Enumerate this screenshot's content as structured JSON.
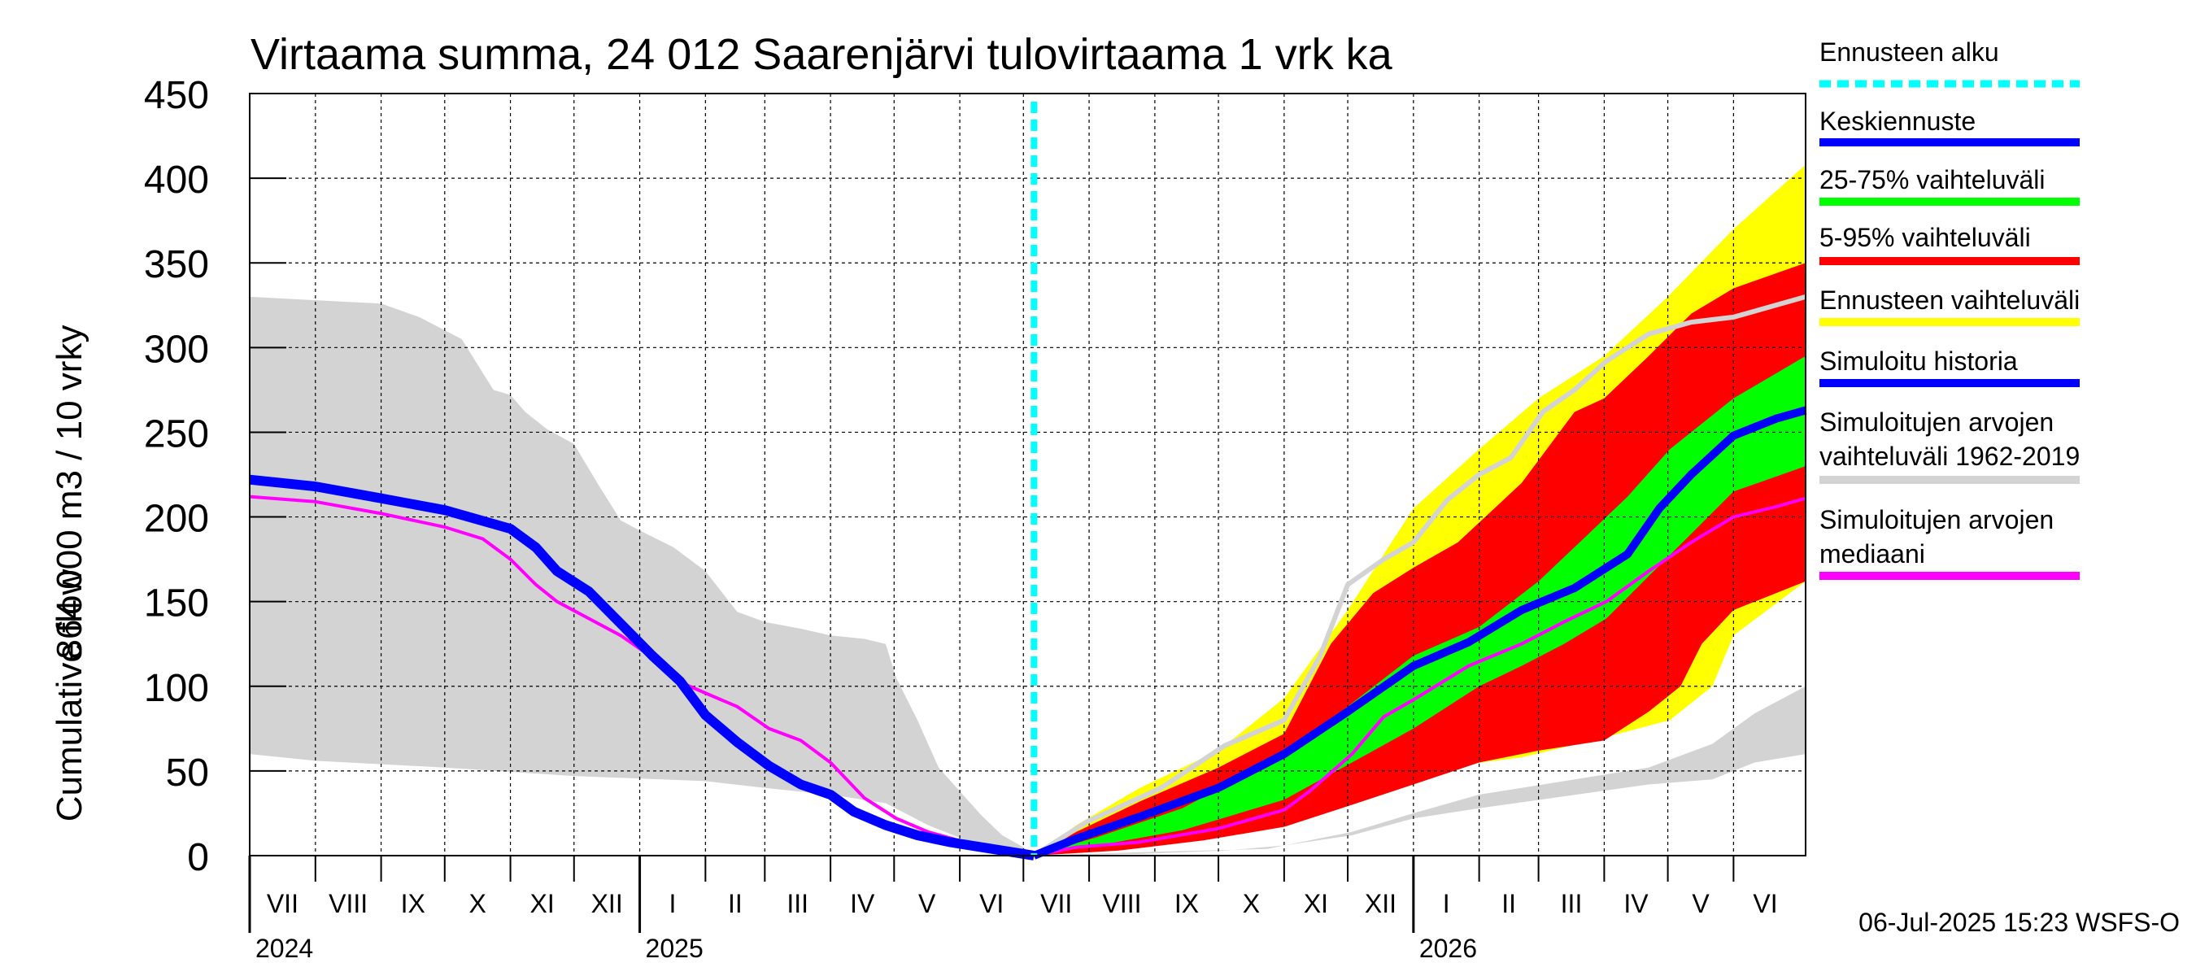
{
  "chart_data": {
    "type": "area",
    "title": "Virtaama summa, 24 012 Saarenjärvi tulovirtaama 1 vrk ka",
    "ylabel_line1": "864 000 m3 / 10 vrky",
    "ylabel_line2": "Cumulative flow",
    "ylim": [
      0,
      450
    ],
    "yticks": [
      0,
      50,
      100,
      150,
      200,
      250,
      300,
      350,
      400,
      450
    ],
    "x_range_days": [
      0,
      734
    ],
    "months": [
      {
        "label": "VII",
        "start": 0,
        "end": 31
      },
      {
        "label": "VIII",
        "start": 31,
        "end": 62
      },
      {
        "label": "IX",
        "start": 62,
        "end": 92
      },
      {
        "label": "X",
        "start": 92,
        "end": 123
      },
      {
        "label": "XI",
        "start": 123,
        "end": 153
      },
      {
        "label": "XII",
        "start": 153,
        "end": 184
      },
      {
        "label": "I",
        "start": 184,
        "end": 215
      },
      {
        "label": "II",
        "start": 215,
        "end": 243
      },
      {
        "label": "III",
        "start": 243,
        "end": 274
      },
      {
        "label": "IV",
        "start": 274,
        "end": 304
      },
      {
        "label": "V",
        "start": 304,
        "end": 335
      },
      {
        "label": "VI",
        "start": 335,
        "end": 365
      },
      {
        "label": "VII",
        "start": 365,
        "end": 396
      },
      {
        "label": "VIII",
        "start": 396,
        "end": 427
      },
      {
        "label": "IX",
        "start": 427,
        "end": 457
      },
      {
        "label": "X",
        "start": 457,
        "end": 488
      },
      {
        "label": "XI",
        "start": 488,
        "end": 518
      },
      {
        "label": "XII",
        "start": 518,
        "end": 549
      },
      {
        "label": "I",
        "start": 549,
        "end": 580
      },
      {
        "label": "II",
        "start": 580,
        "end": 608
      },
      {
        "label": "III",
        "start": 608,
        "end": 639
      },
      {
        "label": "IV",
        "start": 639,
        "end": 669
      },
      {
        "label": "V",
        "start": 669,
        "end": 700
      },
      {
        "label": "VI",
        "start": 700,
        "end": 730
      }
    ],
    "years": [
      {
        "label": "2024",
        "day": 0
      },
      {
        "label": "2025",
        "day": 184
      },
      {
        "label": "2026",
        "day": 549
      }
    ],
    "forecast_start_day": 370,
    "series": {
      "hist_range_upper": [
        [
          0,
          330
        ],
        [
          30,
          328
        ],
        [
          62,
          326
        ],
        [
          80,
          318
        ],
        [
          100,
          305
        ],
        [
          115,
          275
        ],
        [
          123,
          272
        ],
        [
          130,
          262
        ],
        [
          140,
          252
        ],
        [
          153,
          243
        ],
        [
          165,
          218
        ],
        [
          175,
          198
        ],
        [
          184,
          192
        ],
        [
          200,
          182
        ],
        [
          215,
          168
        ],
        [
          230,
          144
        ],
        [
          243,
          138
        ],
        [
          260,
          134
        ],
        [
          274,
          130
        ],
        [
          290,
          128
        ],
        [
          300,
          125
        ],
        [
          305,
          105
        ],
        [
          315,
          80
        ],
        [
          325,
          52
        ],
        [
          335,
          38
        ],
        [
          345,
          24
        ],
        [
          355,
          12
        ],
        [
          365,
          5
        ],
        [
          370,
          0
        ]
      ],
      "hist_range_lower": [
        [
          0,
          60
        ],
        [
          31,
          56
        ],
        [
          92,
          52
        ],
        [
          153,
          47
        ],
        [
          215,
          44
        ],
        [
          243,
          40
        ],
        [
          274,
          36
        ],
        [
          300,
          31
        ],
        [
          320,
          18
        ],
        [
          340,
          8
        ],
        [
          360,
          3
        ],
        [
          370,
          0
        ]
      ],
      "sim_history": [
        [
          0,
          222
        ],
        [
          31,
          218
        ],
        [
          62,
          211
        ],
        [
          92,
          204
        ],
        [
          123,
          193
        ],
        [
          135,
          182
        ],
        [
          145,
          168
        ],
        [
          160,
          156
        ],
        [
          175,
          137
        ],
        [
          190,
          118
        ],
        [
          203,
          103
        ],
        [
          215,
          83
        ],
        [
          230,
          67
        ],
        [
          245,
          53
        ],
        [
          260,
          42
        ],
        [
          274,
          36
        ],
        [
          285,
          26
        ],
        [
          300,
          18
        ],
        [
          315,
          12
        ],
        [
          330,
          8
        ],
        [
          345,
          5
        ],
        [
          360,
          2
        ],
        [
          370,
          0
        ]
      ],
      "hist_median": [
        [
          0,
          212
        ],
        [
          31,
          209
        ],
        [
          62,
          202
        ],
        [
          92,
          194
        ],
        [
          110,
          187
        ],
        [
          123,
          175
        ],
        [
          135,
          160
        ],
        [
          145,
          150
        ],
        [
          160,
          140
        ],
        [
          175,
          130
        ],
        [
          190,
          117
        ],
        [
          200,
          104
        ],
        [
          215,
          96
        ],
        [
          230,
          88
        ],
        [
          245,
          75
        ],
        [
          260,
          68
        ],
        [
          274,
          55
        ],
        [
          290,
          34
        ],
        [
          305,
          22
        ],
        [
          320,
          14
        ],
        [
          340,
          7
        ],
        [
          360,
          2
        ],
        [
          370,
          0
        ]
      ],
      "ens_range_upper": [
        [
          370,
          0
        ],
        [
          390,
          18
        ],
        [
          420,
          40
        ],
        [
          457,
          62
        ],
        [
          488,
          93
        ],
        [
          518,
          145
        ],
        [
          549,
          205
        ],
        [
          580,
          240
        ],
        [
          608,
          270
        ],
        [
          639,
          295
        ],
        [
          669,
          330
        ],
        [
          700,
          370
        ],
        [
          734,
          408
        ]
      ],
      "ens_range_lower": [
        [
          370,
          0
        ],
        [
          400,
          4
        ],
        [
          440,
          11
        ],
        [
          488,
          22
        ],
        [
          520,
          35
        ],
        [
          549,
          50
        ],
        [
          600,
          58
        ],
        [
          640,
          70
        ],
        [
          670,
          80
        ],
        [
          690,
          100
        ],
        [
          700,
          130
        ],
        [
          734,
          162
        ]
      ],
      "ens_5_95_upper": [
        [
          370,
          0
        ],
        [
          390,
          14
        ],
        [
          420,
          32
        ],
        [
          457,
          52
        ],
        [
          488,
          72
        ],
        [
          510,
          125
        ],
        [
          530,
          155
        ],
        [
          549,
          170
        ],
        [
          570,
          185
        ],
        [
          600,
          220
        ],
        [
          625,
          262
        ],
        [
          639,
          270
        ],
        [
          660,
          295
        ],
        [
          680,
          320
        ],
        [
          700,
          335
        ],
        [
          734,
          350
        ]
      ],
      "ens_5_95_lower": [
        [
          370,
          0
        ],
        [
          410,
          3
        ],
        [
          450,
          9
        ],
        [
          488,
          17
        ],
        [
          520,
          30
        ],
        [
          549,
          42
        ],
        [
          580,
          55
        ],
        [
          608,
          62
        ],
        [
          639,
          68
        ],
        [
          660,
          85
        ],
        [
          675,
          100
        ],
        [
          685,
          125
        ],
        [
          700,
          145
        ],
        [
          734,
          162
        ]
      ],
      "ens_25_75_upper": [
        [
          370,
          0
        ],
        [
          400,
          11
        ],
        [
          440,
          28
        ],
        [
          488,
          60
        ],
        [
          520,
          90
        ],
        [
          549,
          118
        ],
        [
          580,
          135
        ],
        [
          608,
          162
        ],
        [
          630,
          188
        ],
        [
          650,
          212
        ],
        [
          670,
          240
        ],
        [
          700,
          270
        ],
        [
          734,
          295
        ]
      ],
      "ens_25_75_lower": [
        [
          370,
          0
        ],
        [
          400,
          6
        ],
        [
          440,
          15
        ],
        [
          488,
          33
        ],
        [
          520,
          55
        ],
        [
          549,
          75
        ],
        [
          580,
          100
        ],
        [
          600,
          112
        ],
        [
          620,
          125
        ],
        [
          640,
          140
        ],
        [
          660,
          165
        ],
        [
          680,
          190
        ],
        [
          700,
          215
        ],
        [
          734,
          230
        ]
      ],
      "mean_forecast": [
        [
          370,
          0
        ],
        [
          390,
          10
        ],
        [
          420,
          23
        ],
        [
          457,
          40
        ],
        [
          488,
          60
        ],
        [
          518,
          85
        ],
        [
          549,
          112
        ],
        [
          575,
          126
        ],
        [
          600,
          145
        ],
        [
          625,
          158
        ],
        [
          650,
          178
        ],
        [
          665,
          205
        ],
        [
          680,
          225
        ],
        [
          700,
          248
        ],
        [
          720,
          258
        ],
        [
          734,
          263
        ]
      ],
      "median_forecast": [
        [
          370,
          0
        ],
        [
          390,
          5
        ],
        [
          420,
          8
        ],
        [
          457,
          16
        ],
        [
          488,
          27
        ],
        [
          500,
          38
        ],
        [
          520,
          60
        ],
        [
          535,
          82
        ],
        [
          549,
          92
        ],
        [
          575,
          112
        ],
        [
          600,
          125
        ],
        [
          620,
          138
        ],
        [
          640,
          150
        ],
        [
          660,
          168
        ],
        [
          680,
          185
        ],
        [
          700,
          200
        ],
        [
          720,
          206
        ],
        [
          734,
          211
        ]
      ],
      "hist_range_upper_future": [
        [
          370,
          0
        ],
        [
          395,
          20
        ],
        [
          430,
          40
        ],
        [
          460,
          65
        ],
        [
          488,
          80
        ],
        [
          505,
          118
        ],
        [
          518,
          160
        ],
        [
          535,
          175
        ],
        [
          549,
          185
        ],
        [
          565,
          210
        ],
        [
          580,
          225
        ],
        [
          595,
          235
        ],
        [
          610,
          262
        ],
        [
          625,
          275
        ],
        [
          640,
          292
        ],
        [
          660,
          308
        ],
        [
          680,
          315
        ],
        [
          700,
          318
        ],
        [
          734,
          330
        ]
      ],
      "hist_range_lower_future": [
        [
          370,
          0
        ],
        [
          420,
          1
        ],
        [
          460,
          3
        ],
        [
          488,
          6
        ],
        [
          520,
          12
        ],
        [
          549,
          22
        ],
        [
          580,
          28
        ],
        [
          620,
          35
        ],
        [
          660,
          42
        ],
        [
          690,
          45
        ],
        [
          710,
          55
        ],
        [
          734,
          60
        ]
      ],
      "hist_range_upper_future_gray": [
        [
          370,
          0
        ],
        [
          420,
          2
        ],
        [
          480,
          4
        ],
        [
          520,
          14
        ],
        [
          549,
          25
        ],
        [
          580,
          36
        ],
        [
          620,
          44
        ],
        [
          660,
          52
        ],
        [
          690,
          66
        ],
        [
          710,
          84
        ],
        [
          734,
          100
        ]
      ]
    },
    "legend": [
      {
        "label": "Ennusteen alku",
        "color": "#00ffff",
        "style": "dotted"
      },
      {
        "label": "Keskiennuste",
        "color": "#0000ff",
        "style": "line"
      },
      {
        "label": "25-75% vaihteluväli",
        "color": "#00ff00",
        "style": "line"
      },
      {
        "label": "5-95% vaihteluväli",
        "color": "#ff0000",
        "style": "line"
      },
      {
        "label": "Ennusteen vaihteluväli",
        "color": "#ffff00",
        "style": "line"
      },
      {
        "label": "Simuloitu historia",
        "color": "#0000ff",
        "style": "line"
      },
      {
        "label": "Simuloitujen arvojen\nvaihteluväli 1962-2019",
        "color": "#d3d3d3",
        "style": "line"
      },
      {
        "label": "Simuloitujen arvojen\nmediaani",
        "color": "#ff00ff",
        "style": "line"
      }
    ],
    "footer": "06-Jul-2025 15:23 WSFS-O"
  }
}
